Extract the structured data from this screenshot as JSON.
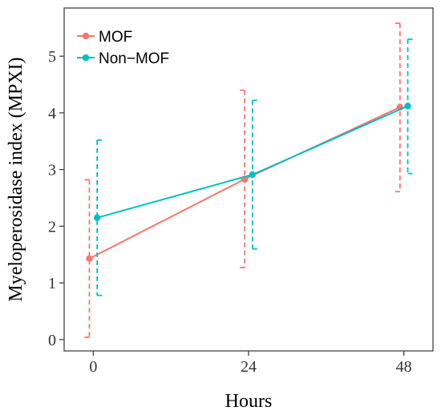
{
  "chart_data": {
    "type": "line",
    "xlabel": "Hours",
    "ylabel": "Myeloperosidase index (MPXI)",
    "x": [
      0,
      24,
      48
    ],
    "xlim": [
      -4.5,
      52.5
    ],
    "ylim": [
      -0.2,
      5.85
    ],
    "x_ticks": [
      "0",
      "24",
      "48"
    ],
    "y_ticks": [
      "0",
      "1",
      "2",
      "3",
      "4",
      "5"
    ],
    "grid": false,
    "legend_position": "top-left",
    "error_bar_style": "dashed",
    "series": [
      {
        "name": "MOF",
        "color": "#F8766D",
        "x_offset": -0.6,
        "values": [
          1.43,
          2.83,
          4.1
        ],
        "lower": [
          0.04,
          1.27,
          2.61
        ],
        "upper": [
          2.82,
          4.4,
          5.58
        ]
      },
      {
        "name": "Non−MOF",
        "color": "#00BFC4",
        "x_offset": 0.6,
        "values": [
          2.15,
          2.91,
          4.12
        ],
        "lower": [
          0.78,
          1.6,
          2.93
        ],
        "upper": [
          3.52,
          4.22,
          5.3
        ]
      }
    ]
  }
}
